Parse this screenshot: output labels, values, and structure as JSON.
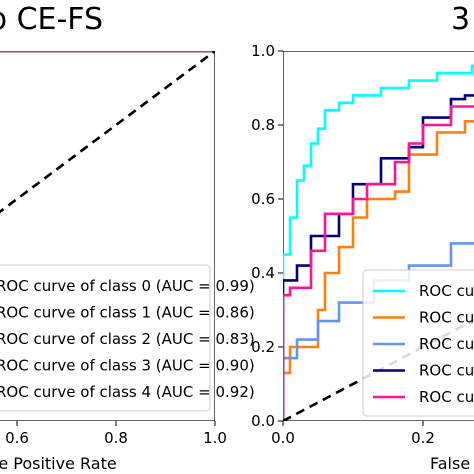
{
  "chart_data": [
    {
      "type": "line",
      "title": "b CE-FS",
      "xlabel": "False Positive Rate",
      "ylabel": "",
      "xlim": [
        0,
        1
      ],
      "ylim": [
        0,
        1
      ],
      "xticks": [
        0.6,
        0.8,
        1.0
      ],
      "xtick_labels": [
        "0.6",
        "0.8",
        "1.0"
      ],
      "reference_line": {
        "x": [
          0,
          1
        ],
        "y": [
          0,
          1
        ],
        "style": "dashed",
        "color": "#000000"
      },
      "legend_placement": "lower-right",
      "series": [
        {
          "name": "ROC curve of class 0 (AUC = 0.99)",
          "color": "#00ffff",
          "x": [
            0.0,
            0.02,
            0.05,
            1.0
          ],
          "y": [
            0.98,
            1.0,
            1.0,
            1.0
          ]
        },
        {
          "name": "ROC curve of class 1 (AUC = 0.86)",
          "color": "#ff7f0e",
          "x": [
            0.0,
            0.02,
            0.05,
            0.1,
            0.15,
            0.2,
            1.0
          ],
          "y": [
            0.97,
            0.97,
            0.98,
            0.98,
            1.0,
            1.0,
            1.0
          ]
        },
        {
          "name": "ROC curve of class 2 (AUC = 0.83)",
          "color": "#6495ed",
          "x": [
            0.0,
            0.1,
            0.2,
            0.3,
            0.35,
            0.45,
            0.5,
            0.52,
            1.0
          ],
          "y": [
            0.95,
            0.95,
            0.95,
            0.95,
            0.97,
            0.97,
            0.97,
            1.0,
            1.0
          ]
        },
        {
          "name": "ROC curve of class 3 (AUC = 0.90)",
          "color": "#000080",
          "x": [
            0.0,
            0.05,
            0.1,
            1.0
          ],
          "y": [
            0.97,
            0.99,
            1.0,
            1.0
          ]
        },
        {
          "name": "ROC curve of class 4 (AUC = 0.92)",
          "color": "#ff1493",
          "x": [
            0.0,
            0.05,
            0.1,
            0.2,
            0.25,
            0.3,
            1.0
          ],
          "y": [
            0.96,
            0.96,
            0.96,
            0.96,
            0.99,
            1.0,
            1.0
          ]
        }
      ]
    },
    {
      "type": "line",
      "title": "3",
      "xlabel": "False Positive Rate",
      "ylabel": "",
      "xlim": [
        0,
        1
      ],
      "ylim": [
        0,
        1
      ],
      "xticks": [
        0.0,
        0.2,
        0.4
      ],
      "xtick_labels": [
        "0.0",
        "0.2",
        "0.4"
      ],
      "yticks": [
        0.0,
        0.2,
        0.4,
        0.6,
        0.8,
        1.0
      ],
      "ytick_labels": [
        "0.0",
        "0.2",
        "0.4",
        "0.6",
        "0.8",
        "1.0"
      ],
      "reference_line": {
        "x": [
          0,
          1
        ],
        "y": [
          0,
          1
        ],
        "style": "dashed",
        "color": "#000000"
      },
      "legend_placement": "lower-right",
      "series": [
        {
          "name": "ROC curve of class 0",
          "color": "#00ffff",
          "x": [
            0.0,
            0.0,
            0.01,
            0.01,
            0.02,
            0.02,
            0.03,
            0.03,
            0.04,
            0.04,
            0.05,
            0.05,
            0.06,
            0.06,
            0.08,
            0.08,
            0.1,
            0.1,
            0.14,
            0.14,
            0.18,
            0.18,
            0.22,
            0.22,
            0.27,
            0.27,
            0.33,
            0.33,
            0.4,
            0.4,
            0.6
          ],
          "y": [
            0.0,
            0.45,
            0.45,
            0.55,
            0.55,
            0.65,
            0.65,
            0.69,
            0.69,
            0.75,
            0.75,
            0.79,
            0.79,
            0.84,
            0.84,
            0.86,
            0.86,
            0.88,
            0.88,
            0.9,
            0.9,
            0.92,
            0.92,
            0.94,
            0.94,
            0.96,
            0.96,
            0.97,
            0.97,
            0.97,
            0.97
          ]
        },
        {
          "name": "ROC curve of class 1",
          "color": "#ff7f0e",
          "x": [
            0.0,
            0.0,
            0.01,
            0.01,
            0.03,
            0.03,
            0.05,
            0.05,
            0.06,
            0.06,
            0.08,
            0.08,
            0.1,
            0.1,
            0.12,
            0.12,
            0.16,
            0.16,
            0.18,
            0.18,
            0.22,
            0.22,
            0.26,
            0.26,
            0.3,
            0.3,
            0.35,
            0.35,
            0.4,
            0.4,
            0.6
          ],
          "y": [
            0.0,
            0.13,
            0.13,
            0.2,
            0.2,
            0.2,
            0.2,
            0.3,
            0.3,
            0.4,
            0.4,
            0.47,
            0.47,
            0.55,
            0.55,
            0.6,
            0.6,
            0.62,
            0.62,
            0.72,
            0.72,
            0.78,
            0.78,
            0.81,
            0.81,
            0.85,
            0.85,
            0.88,
            0.88,
            0.92,
            0.92
          ]
        },
        {
          "name": "ROC curve of class 2",
          "color": "#6495ed",
          "x": [
            0.0,
            0.0,
            0.02,
            0.02,
            0.05,
            0.05,
            0.08,
            0.08,
            0.13,
            0.13,
            0.18,
            0.18,
            0.24,
            0.24,
            0.28,
            0.28,
            0.3,
            0.3,
            0.34,
            0.34,
            0.36,
            0.36,
            0.4,
            0.4,
            0.44,
            0.44,
            0.48,
            0.48,
            0.5,
            0.5,
            0.6
          ],
          "y": [
            0.0,
            0.17,
            0.17,
            0.22,
            0.22,
            0.27,
            0.27,
            0.32,
            0.32,
            0.38,
            0.38,
            0.42,
            0.42,
            0.48,
            0.48,
            0.57,
            0.57,
            0.65,
            0.65,
            0.67,
            0.67,
            0.68,
            0.68,
            0.73,
            0.73,
            0.77,
            0.77,
            0.83,
            0.83,
            0.87,
            0.87
          ]
        },
        {
          "name": "ROC curve of class 3",
          "color": "#000080",
          "x": [
            0.0,
            0.0,
            0.02,
            0.02,
            0.04,
            0.04,
            0.08,
            0.08,
            0.1,
            0.1,
            0.14,
            0.14,
            0.18,
            0.18,
            0.2,
            0.2,
            0.24,
            0.24,
            0.26,
            0.26,
            0.3,
            0.3,
            0.36,
            0.36,
            0.6
          ],
          "y": [
            0.0,
            0.38,
            0.38,
            0.42,
            0.42,
            0.5,
            0.5,
            0.56,
            0.56,
            0.64,
            0.64,
            0.71,
            0.71,
            0.74,
            0.74,
            0.82,
            0.82,
            0.87,
            0.87,
            0.88,
            0.88,
            0.9,
            0.9,
            0.92,
            0.92
          ]
        },
        {
          "name": "ROC curve of class 4",
          "color": "#ff1493",
          "x": [
            0.0,
            0.0,
            0.01,
            0.01,
            0.04,
            0.04,
            0.06,
            0.06,
            0.1,
            0.1,
            0.12,
            0.12,
            0.16,
            0.16,
            0.18,
            0.18,
            0.2,
            0.2,
            0.24,
            0.24,
            0.4,
            0.4,
            0.6
          ],
          "y": [
            0.0,
            0.34,
            0.34,
            0.36,
            0.36,
            0.46,
            0.46,
            0.56,
            0.56,
            0.6,
            0.6,
            0.64,
            0.64,
            0.7,
            0.7,
            0.75,
            0.75,
            0.8,
            0.8,
            0.85,
            0.85,
            0.88,
            0.88
          ]
        }
      ]
    }
  ]
}
